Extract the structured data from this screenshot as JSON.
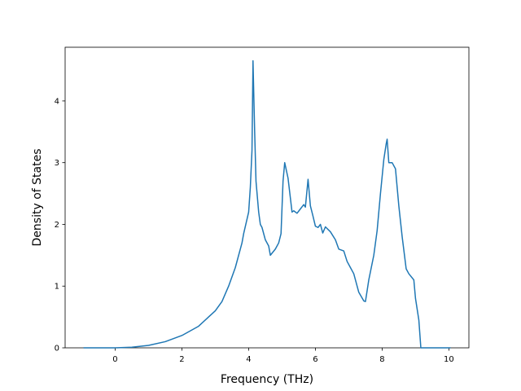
{
  "chart_data": {
    "type": "line",
    "xlabel": "Frequency (THz)",
    "ylabel": "Density of States",
    "xlim": [
      -1.5,
      10.6
    ],
    "ylim": [
      0,
      4.87
    ],
    "xticks": [
      0,
      2,
      4,
      6,
      8,
      10
    ],
    "yticks": [
      0,
      1,
      2,
      3,
      4
    ],
    "grid": false,
    "x": [
      -0.95,
      0,
      0.5,
      1.0,
      1.5,
      2.0,
      2.5,
      2.8,
      3.0,
      3.2,
      3.4,
      3.6,
      3.8,
      3.85,
      4.0,
      4.05,
      4.1,
      4.13,
      4.18,
      4.22,
      4.3,
      4.35,
      4.4,
      4.5,
      4.6,
      4.65,
      4.8,
      4.9,
      4.97,
      5.03,
      5.08,
      5.18,
      5.3,
      5.35,
      5.45,
      5.55,
      5.65,
      5.7,
      5.78,
      5.85,
      5.92,
      6.0,
      6.08,
      6.15,
      6.22,
      6.3,
      6.45,
      6.6,
      6.7,
      6.85,
      6.95,
      7.05,
      7.15,
      7.3,
      7.45,
      7.5,
      7.6,
      7.75,
      7.85,
      7.95,
      8.05,
      8.12,
      8.15,
      8.2,
      8.3,
      8.4,
      8.5,
      8.6,
      8.72,
      8.8,
      8.95,
      9.0,
      9.1,
      9.16,
      10.05
    ],
    "series": [
      {
        "color": "#1f77b4",
        "values": [
          0,
          0,
          0.01,
          0.04,
          0.1,
          0.2,
          0.35,
          0.5,
          0.6,
          0.75,
          1.0,
          1.3,
          1.7,
          1.85,
          2.2,
          2.6,
          3.2,
          4.65,
          3.5,
          2.7,
          2.2,
          2.0,
          1.95,
          1.75,
          1.65,
          1.5,
          1.6,
          1.7,
          1.85,
          2.7,
          3.0,
          2.75,
          2.2,
          2.22,
          2.18,
          2.25,
          2.32,
          2.28,
          2.73,
          2.3,
          2.15,
          1.97,
          1.95,
          2.0,
          1.86,
          1.96,
          1.88,
          1.75,
          1.6,
          1.57,
          1.4,
          1.3,
          1.2,
          0.9,
          0.76,
          0.75,
          1.1,
          1.5,
          1.9,
          2.5,
          3.05,
          3.3,
          3.38,
          3.0,
          3.0,
          2.9,
          2.3,
          1.8,
          1.28,
          1.2,
          1.1,
          0.8,
          0.45,
          0,
          0
        ]
      }
    ]
  }
}
